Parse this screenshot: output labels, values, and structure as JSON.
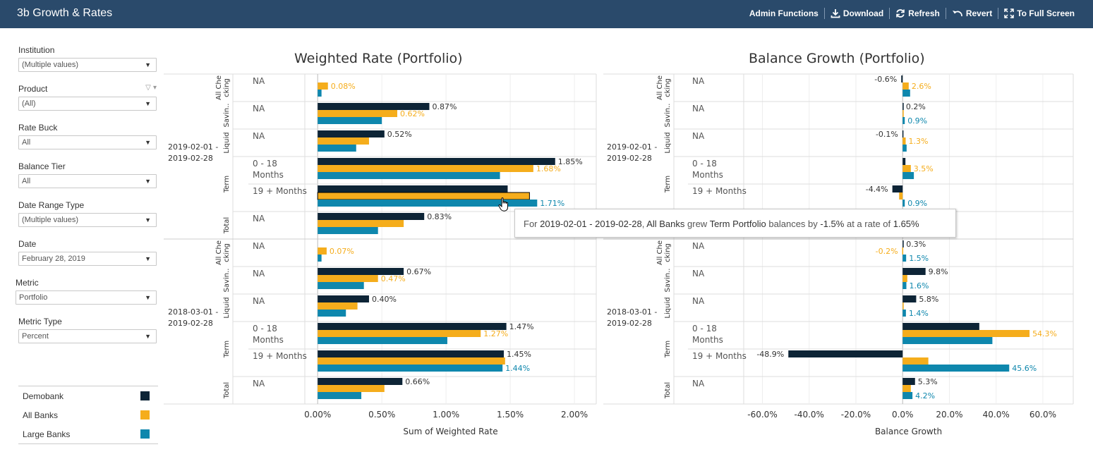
{
  "app": {
    "title": "3b Growth & Rates"
  },
  "toolbar": {
    "items": [
      {
        "label": "Admin Functions",
        "icon": "none"
      },
      {
        "label": "Download",
        "icon": "download-icon"
      },
      {
        "label": "Refresh",
        "icon": "refresh-icon"
      },
      {
        "label": "Revert",
        "icon": "revert-icon"
      },
      {
        "label": "To Full Screen",
        "icon": "fullscreen-icon"
      }
    ]
  },
  "filters": [
    {
      "label": "Institution",
      "value": "(Multiple values)"
    },
    {
      "label": "Product",
      "value": "(All)"
    },
    {
      "label": "Rate Buck",
      "value": "All"
    },
    {
      "label": "Balance Tier",
      "value": "All"
    },
    {
      "label": "Date Range Type",
      "value": "(Multiple values)"
    },
    {
      "label": "Date",
      "value": "February 28, 2019"
    },
    {
      "label": "Metric",
      "value": "Portfolio"
    },
    {
      "label": "Metric Type",
      "value": "Percent"
    }
  ],
  "legend": [
    {
      "label": "Demobank",
      "color": "#0d2436"
    },
    {
      "label": "All Banks",
      "color": "#f5ad1c"
    },
    {
      "label": "Large Banks",
      "color": "#0e87ad"
    }
  ],
  "tooltip": {
    "prefix": "For ",
    "range": "2019-02-01 - 2019-02-28",
    "mid1": ", ",
    "group": "All Banks",
    "mid2": " grew ",
    "product": "Term Portfolio",
    "mid3": " balances by ",
    "growth": "-1.5%",
    "mid4": " at a rate of ",
    "rate": "1.65%"
  },
  "chart_data": [
    {
      "type": "bar",
      "title": "Weighted Rate (Portfolio)",
      "xlabel": "Sum of Weighted Rate",
      "xlim": [
        -0.1,
        2.17
      ],
      "xticks": [
        "0.00%",
        "0.50%",
        "1.00%",
        "1.50%",
        "2.00%"
      ],
      "date_ranges": [
        "2019-02-01 - 2019-02-28",
        "2018-03-01 - 2019-02-28"
      ],
      "products": [
        "All Che cking",
        "Savin..",
        "Liquid",
        "Term",
        "Term",
        "Total"
      ],
      "tiers": [
        "NA",
        "NA",
        "NA",
        "0 - 18 Months",
        "19 + Months",
        "NA"
      ],
      "series": [
        {
          "name": "Demobank",
          "values": [
            null,
            0.87,
            0.52,
            1.85,
            1.48,
            0.83,
            null,
            0.67,
            0.4,
            1.47,
            1.45,
            0.66
          ],
          "labels": [
            "",
            "0.87%",
            "0.52%",
            "1.85%",
            "",
            "0.83%",
            "",
            "0.67%",
            "0.40%",
            "1.47%",
            "1.45%",
            "0.66%"
          ]
        },
        {
          "name": "All Banks",
          "values": [
            0.08,
            0.62,
            0.4,
            1.68,
            1.65,
            0.67,
            0.07,
            0.47,
            0.31,
            1.27,
            1.46,
            0.52
          ],
          "labels": [
            "0.08%",
            "0.62%",
            "",
            "1.68%",
            "",
            "",
            "0.07%",
            "0.47%",
            "",
            "1.27%",
            "",
            ""
          ]
        },
        {
          "name": "Large Banks",
          "values": [
            0.03,
            0.5,
            0.3,
            1.42,
            1.71,
            0.47,
            0.03,
            0.36,
            0.22,
            1.01,
            1.44,
            0.34
          ],
          "labels": [
            "",
            "",
            "",
            "",
            "1.71%",
            "",
            "",
            "",
            "",
            "",
            "1.44%",
            ""
          ]
        }
      ]
    },
    {
      "type": "bar",
      "title": "Balance Growth (Portfolio)",
      "xlabel": "Balance Growth",
      "xlim": [
        -68.0,
        73.0
      ],
      "xticks": [
        "-60.0%",
        "-40.0%",
        "-20.0%",
        "0.0%",
        "20.0%",
        "40.0%",
        "60.0%"
      ],
      "date_ranges": [
        "2019-02-01 - 2019-02-28",
        "2018-03-01 - 2019-02-28"
      ],
      "products": [
        "All Che cking",
        "Savin..",
        "Liquid",
        "Term",
        "Term",
        "Total"
      ],
      "tiers": [
        "NA",
        "NA",
        "NA",
        "0 - 18 Months",
        "19 + Months",
        "NA"
      ],
      "series": [
        {
          "name": "Demobank",
          "values": [
            -0.6,
            0.2,
            -0.1,
            1.2,
            -4.4,
            null,
            0.3,
            9.8,
            5.8,
            32.8,
            -48.9,
            5.3
          ],
          "labels": [
            "-0.6%",
            "0.2%",
            "-0.1%",
            "",
            "-4.4%",
            "",
            "0.3%",
            "9.8%",
            "5.8%",
            "",
            "-48.9%",
            "5.3%"
          ]
        },
        {
          "name": "All Banks",
          "values": [
            2.6,
            0.2,
            1.3,
            3.5,
            -1.5,
            null,
            -0.2,
            2.0,
            0.4,
            54.3,
            11.0,
            3.5
          ],
          "labels": [
            "2.6%",
            "",
            "1.3%",
            "3.5%",
            "",
            "",
            "-0.2%",
            "",
            "",
            "54.3%",
            "",
            ""
          ]
        },
        {
          "name": "Large Banks",
          "values": [
            3.2,
            0.9,
            1.7,
            4.8,
            0.9,
            null,
            1.5,
            1.6,
            1.4,
            38.4,
            45.6,
            4.2
          ],
          "labels": [
            "",
            "0.9%",
            "",
            "",
            "0.9%",
            "",
            "1.5%",
            "1.6%",
            "1.4%",
            "",
            "45.6%",
            "4.2%"
          ]
        }
      ]
    }
  ]
}
